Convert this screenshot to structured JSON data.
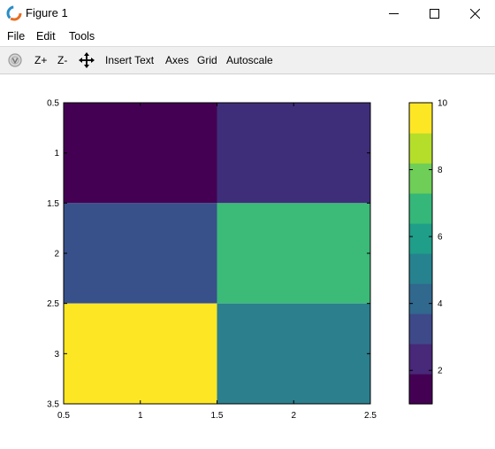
{
  "window": {
    "title": "Figure 1",
    "app_icon": "octave-logo-icon",
    "controls": [
      "minimize-icon",
      "maximize-icon",
      "close-icon"
    ]
  },
  "menu": {
    "items": [
      "File",
      "Edit",
      "Tools"
    ]
  },
  "toolbar": {
    "rotate_icon": "rotate-icon",
    "zoom_in": "Z+",
    "zoom_out": "Z-",
    "pan_icon": "pan-icon",
    "insert_text": "Insert Text",
    "axes": "Axes",
    "grid": "Grid",
    "autoscale": "Autoscale"
  },
  "chart_data": {
    "type": "heatmap",
    "colormap": "viridis",
    "matrix": [
      [
        1,
        3
      ],
      [
        4,
        7
      ],
      [
        10,
        5
      ]
    ],
    "colors": [
      [
        "#440154",
        "#3e2e7a"
      ],
      [
        "#38518b",
        "#3bba78"
      ],
      [
        "#fde725",
        "#2c7f8d"
      ]
    ],
    "xlim": [
      0.5,
      2.5
    ],
    "ylim": [
      0.5,
      3.5
    ],
    "y_reversed": true,
    "x_ticks": [
      "0.5",
      "1",
      "1.5",
      "2",
      "2.5"
    ],
    "y_ticks": [
      "0.5",
      "1",
      "1.5",
      "2",
      "2.5",
      "3",
      "3.5"
    ],
    "colorbar": {
      "range": [
        1,
        10
      ],
      "ticks": [
        "2",
        "4",
        "6",
        "8",
        "10"
      ]
    }
  }
}
